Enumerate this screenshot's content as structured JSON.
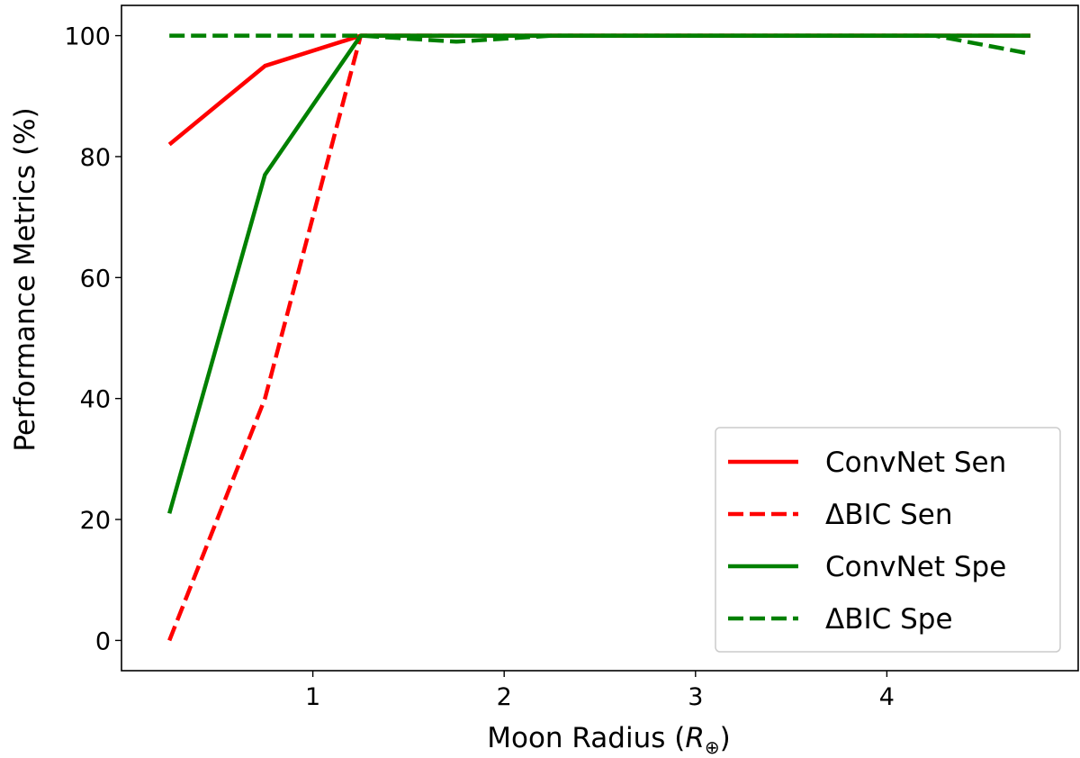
{
  "chart_data": {
    "type": "line",
    "xlabel": "Moon Radius (",
    "xlabel_symbol": "R",
    "xlabel_subscript": "⊕",
    "xlabel_close": ")",
    "ylabel": "Performance Metrics (%)",
    "xlim": [
      0.0,
      5.0
    ],
    "ylim": [
      -5.0,
      105.0
    ],
    "xticks": [
      1,
      2,
      3,
      4
    ],
    "yticks": [
      0,
      20,
      40,
      60,
      80,
      100
    ],
    "grid": false,
    "legend_position": "lower-right",
    "series": [
      {
        "name": "ConvNet Sen",
        "color": "#ff0000",
        "style": "solid",
        "x": [
          0.25,
          0.75,
          1.25,
          1.75,
          2.25,
          2.75,
          3.25,
          3.75,
          4.25,
          4.75
        ],
        "y": [
          82,
          95,
          100,
          100,
          100,
          100,
          100,
          100,
          100,
          100
        ]
      },
      {
        "name": "ΔBIC Sen",
        "color": "#ff0000",
        "style": "dashed",
        "x": [
          0.25,
          0.75,
          1.25,
          1.75,
          2.25,
          2.75,
          3.25,
          3.75,
          4.25,
          4.75
        ],
        "y": [
          0,
          40,
          100,
          100,
          100,
          100,
          100,
          100,
          100,
          100
        ]
      },
      {
        "name": "ConvNet Spe",
        "color": "#008000",
        "style": "solid",
        "x": [
          0.25,
          0.75,
          1.25,
          1.75,
          2.25,
          2.75,
          3.25,
          3.75,
          4.25,
          4.75
        ],
        "y": [
          21,
          77,
          100,
          100,
          100,
          100,
          100,
          100,
          100,
          100
        ]
      },
      {
        "name": "ΔBIC Spe",
        "color": "#008000",
        "style": "dashed",
        "x": [
          0.25,
          0.75,
          1.25,
          1.75,
          2.25,
          2.75,
          3.25,
          3.75,
          4.25,
          4.75
        ],
        "y": [
          100,
          100,
          100,
          99,
          100,
          100,
          100,
          100,
          100,
          97
        ]
      }
    ]
  }
}
